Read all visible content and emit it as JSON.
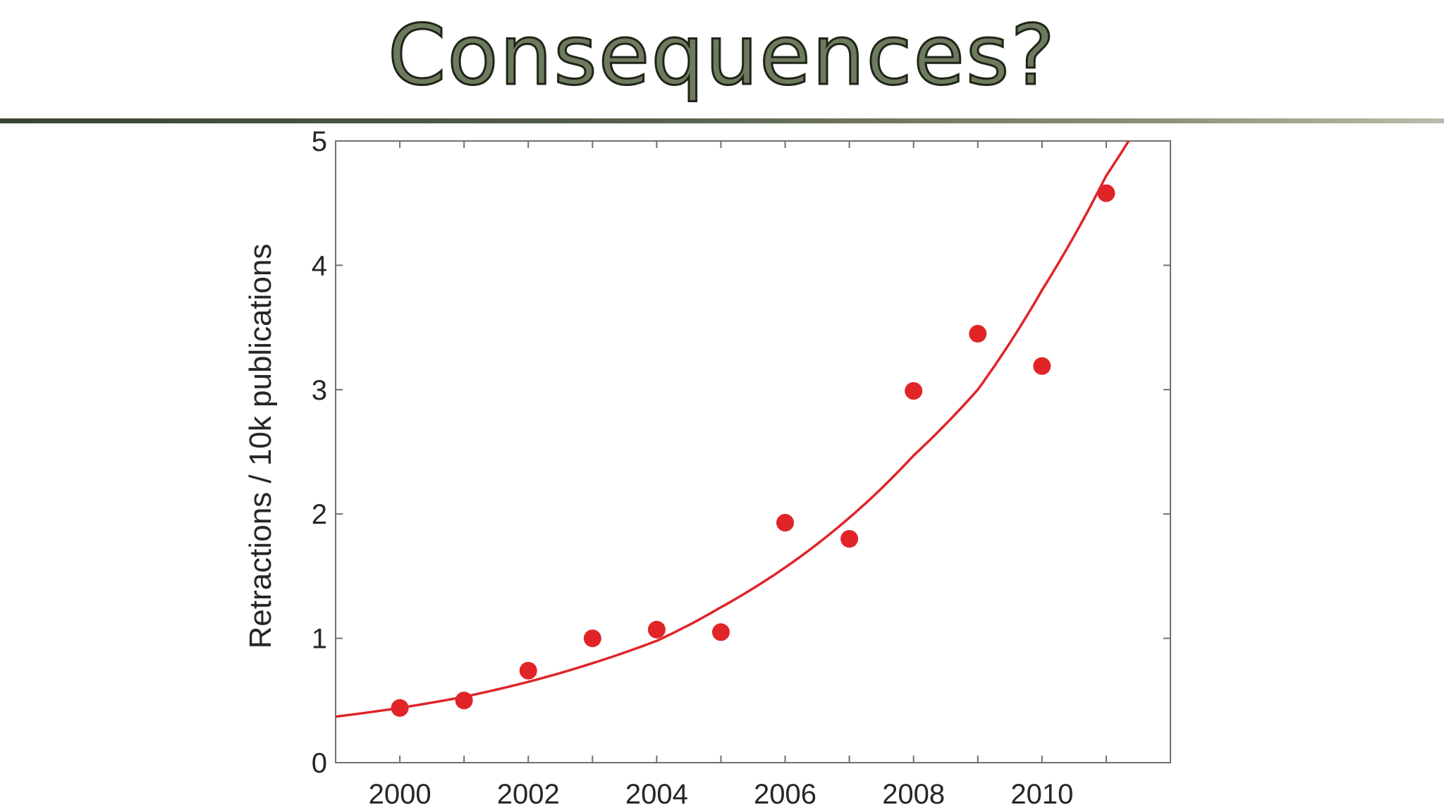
{
  "slide": {
    "title": "Consequences?"
  },
  "colors": {
    "title_fill": "#6e7a5e",
    "title_outline": "#1e2418",
    "series": "#e02428",
    "axis": "#707070"
  },
  "chart_data": {
    "type": "scatter",
    "xlabel": "",
    "ylabel": "Retractions / 10k publications",
    "xlim": [
      1999,
      2012
    ],
    "ylim": [
      0,
      5
    ],
    "xticks": [
      2000,
      2002,
      2004,
      2006,
      2008,
      2010
    ],
    "yticks": [
      0,
      1,
      2,
      3,
      4,
      5
    ],
    "grid": false,
    "series": [
      {
        "kind": "points",
        "x": [
          2000,
          2001,
          2002,
          2003,
          2004,
          2005,
          2006,
          2007,
          2008,
          2009,
          2010,
          2011
        ],
        "y": [
          0.44,
          0.5,
          0.74,
          1.0,
          1.07,
          1.05,
          1.93,
          1.8,
          2.99,
          3.45,
          3.19,
          4.58
        ]
      },
      {
        "kind": "exponential-fit",
        "x": [
          1999,
          2000,
          2001,
          2002,
          2003,
          2004,
          2005,
          2006,
          2007,
          2008,
          2009,
          2010,
          2011,
          2011.35
        ],
        "y": [
          0.37,
          0.44,
          0.53,
          0.65,
          0.8,
          0.98,
          1.25,
          1.57,
          1.97,
          2.47,
          3.0,
          3.8,
          4.72,
          5.0
        ]
      }
    ]
  }
}
